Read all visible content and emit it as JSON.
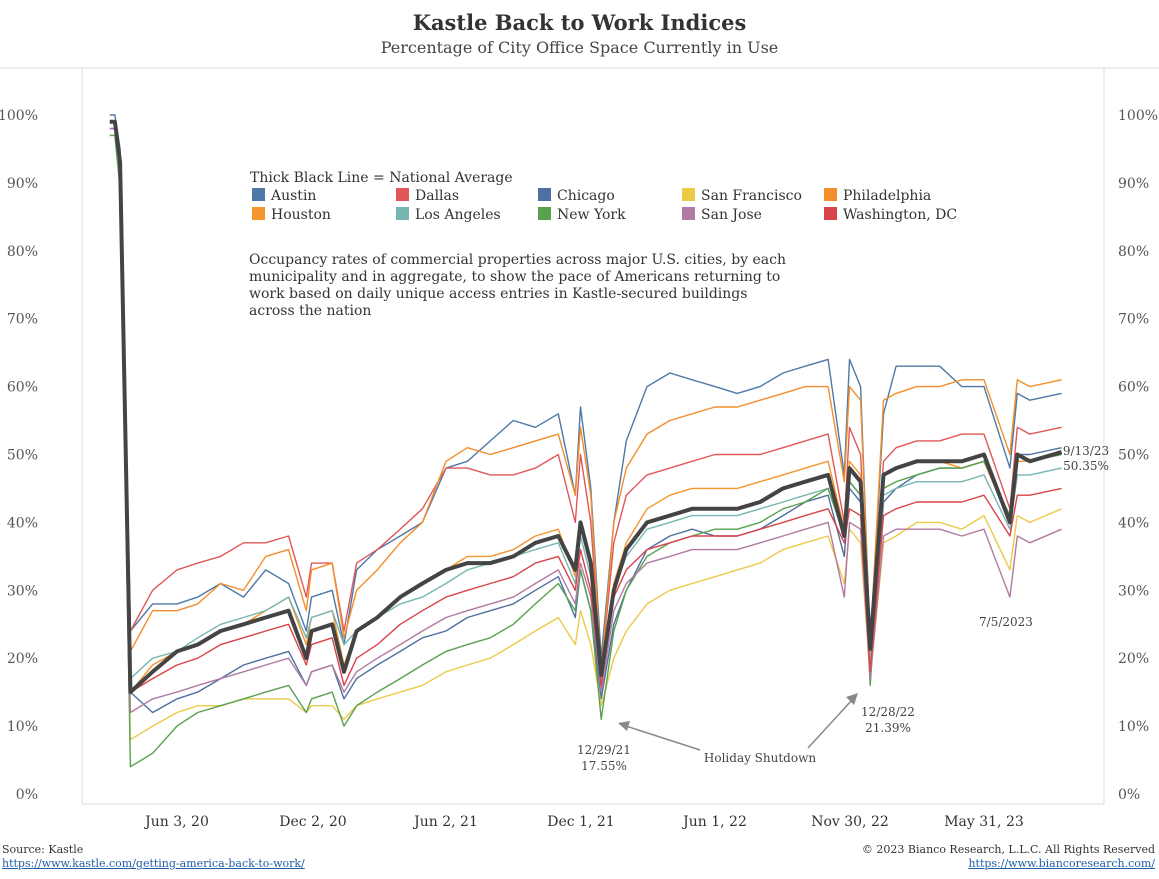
{
  "chart_data": {
    "type": "line",
    "title": "Kastle Back to Work Indices",
    "subtitle": "Percentage of City Office Space Currently in Use",
    "ylim": [
      0,
      100
    ],
    "yticks": [
      "0%",
      "10%",
      "20%",
      "30%",
      "40%",
      "50%",
      "60%",
      "70%",
      "80%",
      "90%",
      "100%"
    ],
    "xticks": [
      "Jun 3, 20",
      "Dec 2, 20",
      "Jun 2, 21",
      "Dec 1, 21",
      "Jun 1, 22",
      "Nov 30, 22",
      "May 31, 23"
    ],
    "legend_title": "Thick Black Line = National Average",
    "legend": [
      {
        "name": "Austin",
        "color": "#4e79a7"
      },
      {
        "name": "Dallas",
        "color": "#e15759"
      },
      {
        "name": "Chicago",
        "color": "#4e6fa0"
      },
      {
        "name": "San Francisco",
        "color": "#edc948"
      },
      {
        "name": "Philadelphia",
        "color": "#f28e2b"
      },
      {
        "name": "Houston",
        "color": "#f5962e"
      },
      {
        "name": "Los Angeles",
        "color": "#76b7b2"
      },
      {
        "name": "New York",
        "color": "#59a14f"
      },
      {
        "name": "San Jose",
        "color": "#b07aa1"
      },
      {
        "name": "Washington, DC",
        "color": "#d9434a"
      }
    ],
    "note_lines": [
      "Occupancy rates of commercial properties across major U.S. cities, by each",
      "municipality and in aggregate, to show the pace of Americans returning to",
      "work based on daily unique access entries in Kastle-secured buildings",
      "across the nation"
    ],
    "annotations": {
      "holiday": "Holiday Shutdown",
      "dec21_date": "12/29/21",
      "dec21_value": "17.55%",
      "dec22_date": "12/28/22",
      "dec22_value": "21.39%",
      "jul23_date": "7/5/2023",
      "latest_date": "9/13/23",
      "latest_value": "50.35%"
    },
    "x": [
      "2020-03-04",
      "2020-03-11",
      "2020-03-18",
      "2020-04-01",
      "2020-05-01",
      "2020-06-03",
      "2020-07-01",
      "2020-08-01",
      "2020-09-01",
      "2020-10-01",
      "2020-11-01",
      "2020-11-25",
      "2020-12-02",
      "2020-12-30",
      "2021-01-15",
      "2021-02-01",
      "2021-03-01",
      "2021-04-01",
      "2021-05-01",
      "2021-06-02",
      "2021-07-01",
      "2021-08-01",
      "2021-09-01",
      "2021-10-01",
      "2021-11-01",
      "2021-11-24",
      "2021-12-01",
      "2021-12-15",
      "2021-12-29",
      "2022-01-15",
      "2022-02-01",
      "2022-03-01",
      "2022-04-01",
      "2022-05-01",
      "2022-06-01",
      "2022-07-01",
      "2022-08-01",
      "2022-09-01",
      "2022-10-01",
      "2022-11-01",
      "2022-11-23",
      "2022-11-30",
      "2022-12-15",
      "2022-12-28",
      "2023-01-15",
      "2023-02-01",
      "2023-03-01",
      "2023-04-01",
      "2023-05-01",
      "2023-05-31",
      "2023-07-05",
      "2023-07-15",
      "2023-08-01",
      "2023-09-13"
    ],
    "series": [
      {
        "name": "Austin",
        "color": "#4e79a7",
        "values": [
          100,
          100,
          95,
          24,
          28,
          28,
          29,
          31,
          29,
          33,
          31,
          24,
          29,
          30,
          22,
          33,
          36,
          38,
          40,
          48,
          49,
          52,
          55,
          54,
          56,
          44,
          57,
          45,
          20,
          40,
          52,
          60,
          62,
          61,
          60,
          59,
          60,
          62,
          63,
          64,
          47,
          64,
          60,
          22,
          56,
          63,
          63,
          63,
          60,
          60,
          48,
          59,
          58,
          59
        ]
      },
      {
        "name": "Dallas",
        "color": "#e15759",
        "values": [
          99,
          99,
          94,
          24,
          30,
          33,
          34,
          35,
          37,
          37,
          38,
          29,
          34,
          34,
          24,
          34,
          36,
          39,
          42,
          48,
          48,
          47,
          47,
          48,
          50,
          40,
          50,
          40,
          18,
          37,
          44,
          47,
          48,
          49,
          50,
          50,
          50,
          51,
          52,
          53,
          40,
          54,
          50,
          20,
          49,
          51,
          52,
          52,
          53,
          53,
          42,
          54,
          53,
          54
        ]
      },
      {
        "name": "Chicago",
        "color": "#4e6fa0",
        "values": [
          98,
          98,
          92,
          15,
          12,
          14,
          15,
          17,
          19,
          20,
          21,
          16,
          18,
          19,
          14,
          17,
          19,
          21,
          23,
          24,
          26,
          27,
          28,
          30,
          32,
          26,
          33,
          27,
          14,
          25,
          30,
          36,
          38,
          39,
          38,
          38,
          39,
          41,
          43,
          44,
          35,
          45,
          43,
          18,
          43,
          45,
          47,
          48,
          48,
          49,
          40,
          50,
          50,
          51
        ]
      },
      {
        "name": "San Francisco",
        "color": "#edc948",
        "values": [
          97,
          97,
          90,
          8,
          10,
          12,
          13,
          13,
          14,
          14,
          14,
          12,
          13,
          13,
          11,
          13,
          14,
          15,
          16,
          18,
          19,
          20,
          22,
          24,
          26,
          22,
          27,
          22,
          13,
          20,
          24,
          28,
          30,
          31,
          32,
          33,
          34,
          36,
          37,
          38,
          31,
          39,
          37,
          17,
          37,
          38,
          40,
          40,
          39,
          41,
          33,
          41,
          40,
          42
        ]
      },
      {
        "name": "Philadelphia",
        "color": "#f28e2b",
        "values": [
          99,
          99,
          93,
          21,
          27,
          27,
          28,
          31,
          30,
          35,
          36,
          27,
          33,
          34,
          23,
          30,
          33,
          37,
          40,
          49,
          51,
          50,
          51,
          52,
          53,
          44,
          54,
          44,
          18,
          40,
          48,
          53,
          55,
          56,
          57,
          57,
          58,
          59,
          60,
          60,
          46,
          60,
          58,
          22,
          58,
          59,
          60,
          60,
          61,
          61,
          50,
          61,
          60,
          61
        ]
      },
      {
        "name": "Houston",
        "color": "#f5962e",
        "values": [
          99,
          99,
          93,
          15,
          19,
          21,
          22,
          24,
          25,
          27,
          29,
          22,
          26,
          27,
          19,
          24,
          26,
          29,
          31,
          33,
          35,
          35,
          36,
          38,
          39,
          32,
          40,
          33,
          16,
          31,
          37,
          42,
          44,
          45,
          45,
          45,
          46,
          47,
          48,
          49,
          39,
          49,
          47,
          20,
          47,
          48,
          49,
          49,
          48,
          49,
          40,
          49,
          49,
          50
        ]
      },
      {
        "name": "Los Angeles",
        "color": "#76b7b2",
        "values": [
          98,
          98,
          91,
          17,
          20,
          21,
          23,
          25,
          26,
          27,
          29,
          23,
          26,
          27,
          22,
          24,
          26,
          28,
          29,
          31,
          33,
          34,
          35,
          36,
          37,
          31,
          38,
          32,
          17,
          30,
          35,
          39,
          40,
          41,
          41,
          41,
          42,
          43,
          44,
          45,
          38,
          46,
          44,
          19,
          44,
          45,
          46,
          46,
          46,
          47,
          39,
          47,
          47,
          48
        ]
      },
      {
        "name": "New York",
        "color": "#59a14f",
        "values": [
          97,
          97,
          89,
          4,
          6,
          10,
          12,
          13,
          14,
          15,
          16,
          12,
          14,
          15,
          10,
          13,
          15,
          17,
          19,
          21,
          22,
          23,
          25,
          28,
          31,
          27,
          33,
          27,
          11,
          24,
          30,
          35,
          37,
          38,
          39,
          39,
          40,
          42,
          43,
          45,
          38,
          46,
          44,
          16,
          45,
          46,
          47,
          48,
          48,
          49,
          41,
          50,
          49,
          50
        ]
      },
      {
        "name": "San Jose",
        "color": "#b07aa1",
        "values": [
          98,
          98,
          91,
          12,
          14,
          15,
          16,
          17,
          18,
          19,
          20,
          16,
          18,
          19,
          15,
          18,
          20,
          22,
          24,
          26,
          27,
          28,
          29,
          31,
          33,
          28,
          34,
          29,
          15,
          27,
          31,
          34,
          35,
          36,
          36,
          36,
          37,
          38,
          39,
          40,
          29,
          40,
          39,
          17,
          38,
          39,
          39,
          39,
          38,
          39,
          29,
          38,
          37,
          39
        ]
      },
      {
        "name": "Washington, DC",
        "color": "#d9434a",
        "values": [
          99,
          99,
          93,
          15,
          17,
          19,
          20,
          22,
          23,
          24,
          25,
          19,
          22,
          23,
          16,
          20,
          22,
          25,
          27,
          29,
          30,
          31,
          32,
          34,
          35,
          30,
          36,
          30,
          16,
          29,
          33,
          36,
          37,
          38,
          38,
          38,
          39,
          40,
          41,
          42,
          37,
          42,
          41,
          18,
          41,
          42,
          43,
          43,
          43,
          44,
          38,
          44,
          44,
          45
        ]
      },
      {
        "name": "National Average",
        "color": "#444444",
        "values": [
          99,
          99,
          93,
          15,
          18,
          21,
          22,
          24,
          25,
          26,
          27,
          20,
          24,
          25,
          18,
          24,
          26,
          29,
          31,
          33,
          34,
          34,
          35,
          37,
          38,
          33,
          40,
          34,
          17.55,
          30,
          36,
          40,
          41,
          42,
          42,
          42,
          43,
          45,
          46,
          47,
          38,
          48,
          46,
          21.39,
          47,
          48,
          49,
          49,
          49,
          50,
          40,
          50,
          49,
          50.35
        ]
      }
    ]
  },
  "footer": {
    "source": "Source: Kastle",
    "source_url": "https://www.kastle.com/getting-america-back-to-work/",
    "copyright": "© 2023 Bianco Research, L.L.C. All Rights Reserved",
    "copyright_url": "https://www.biancoresearch.com/"
  }
}
